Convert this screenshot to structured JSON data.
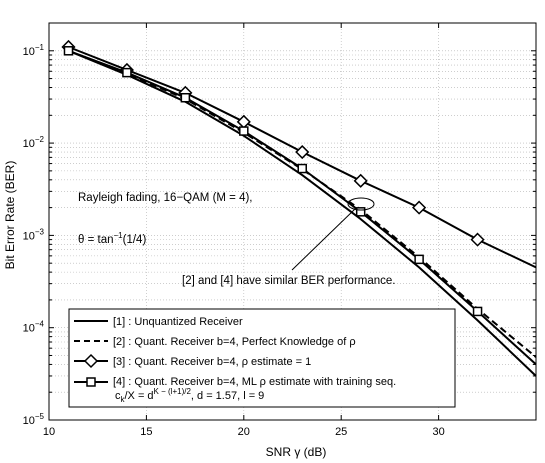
{
  "chart_data": {
    "type": "line",
    "title": "",
    "xlabel": "SNR  γ (dB)",
    "ylabel": "Bit Error Rate (BER)",
    "xlim": [
      10,
      35
    ],
    "ylim": [
      1e-05,
      0.2
    ],
    "yscale": "log",
    "grid": true,
    "legend_position": "bottom-left",
    "x_ticks": [
      10,
      15,
      20,
      25,
      30
    ],
    "x_tick_labels": [
      "10",
      "15",
      "20",
      "25",
      "30"
    ],
    "y_ticks": [
      1e-05,
      0.0001,
      0.001,
      0.01,
      0.1
    ],
    "y_tick_base": "10",
    "y_tick_exponents": [
      "−5",
      "−4",
      "−3",
      "−2",
      "−1"
    ],
    "series": [
      {
        "name": "[1] : Unquantized Receiver",
        "style": "solid",
        "marker": "none",
        "x": [
          11,
          14,
          17,
          20,
          23,
          26,
          29,
          32,
          35
        ],
        "y": [
          0.1,
          0.055,
          0.028,
          0.012,
          0.0045,
          0.0015,
          0.00045,
          0.00012,
          3e-05
        ]
      },
      {
        "name": "[2] : Quant. Receiver b=4, Perfect Knowledge of ρ",
        "style": "dashed",
        "marker": "none",
        "x": [
          11,
          14,
          17,
          20,
          23,
          26,
          29,
          32,
          35
        ],
        "y": [
          0.1,
          0.057,
          0.03,
          0.013,
          0.0052,
          0.0019,
          0.00058,
          0.00016,
          4.8e-05
        ]
      },
      {
        "name": "[3] : Quant. Receiver b=4, ρ estimate = 1",
        "style": "solid",
        "marker": "diamond",
        "x": [
          11,
          14,
          17,
          20,
          23,
          26,
          29,
          32,
          35
        ],
        "y": [
          0.11,
          0.062,
          0.035,
          0.017,
          0.008,
          0.0039,
          0.002,
          0.0009,
          0.00045
        ]
      },
      {
        "name": "[4] : Quant. Receiver b=4, ML ρ estimate with training seq.",
        "style": "solid",
        "marker": "square",
        "x": [
          11,
          14,
          17,
          20,
          23,
          26,
          29,
          32,
          35
        ],
        "y": [
          0.1,
          0.058,
          0.031,
          0.0135,
          0.0053,
          0.0018,
          0.00055,
          0.00015,
          4e-05
        ]
      }
    ],
    "annotations": {
      "condition_line1": "Rayleigh fading, 16−QAM (M = 4),",
      "theta_text": "θ = tan",
      "theta_exponent": "−1",
      "theta_argument": "(1/4)",
      "similar_note": "[2] and [4] have similar BER performance."
    },
    "legend_extra": {
      "c_symbol": "c",
      "c_sub": "k",
      "c_mid": "/X = d",
      "c_sup": "K − (l+1)/2",
      "c_tail": ", d = 1.57, l = 9"
    }
  }
}
